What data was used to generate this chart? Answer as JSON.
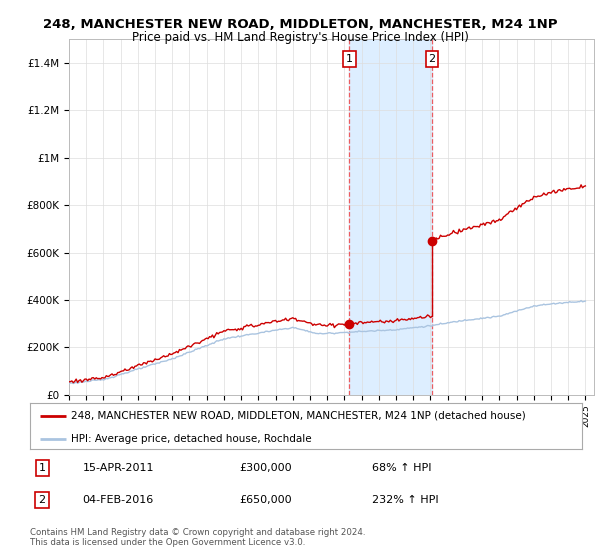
{
  "title": "248, MANCHESTER NEW ROAD, MIDDLETON, MANCHESTER, M24 1NP",
  "subtitle": "Price paid vs. HM Land Registry's House Price Index (HPI)",
  "ylim": [
    0,
    1500000
  ],
  "yticks": [
    0,
    200000,
    400000,
    600000,
    800000,
    1000000,
    1200000,
    1400000
  ],
  "ytick_labels": [
    "£0",
    "£200K",
    "£400K",
    "£600K",
    "£800K",
    "£1M",
    "£1.2M",
    "£1.4M"
  ],
  "xlim_start": 1995.0,
  "xlim_end": 2025.5,
  "hpi_color": "#aac4e0",
  "price_color": "#cc0000",
  "marker_color": "#cc0000",
  "vline_color": "#ee4444",
  "highlight_fill": "#ddeeff",
  "sale1_x": 2011.29,
  "sale1_y": 300000,
  "sale2_x": 2016.09,
  "sale2_y": 650000,
  "legend_line1": "248, MANCHESTER NEW ROAD, MIDDLETON, MANCHESTER, M24 1NP (detached house)",
  "legend_line2": "HPI: Average price, detached house, Rochdale",
  "annotation1_date": "15-APR-2011",
  "annotation1_price": "£300,000",
  "annotation1_hpi": "68% ↑ HPI",
  "annotation2_date": "04-FEB-2016",
  "annotation2_price": "£650,000",
  "annotation2_hpi": "232% ↑ HPI",
  "footnote": "Contains HM Land Registry data © Crown copyright and database right 2024.\nThis data is licensed under the Open Government Licence v3.0.",
  "bg_color": "#ffffff"
}
